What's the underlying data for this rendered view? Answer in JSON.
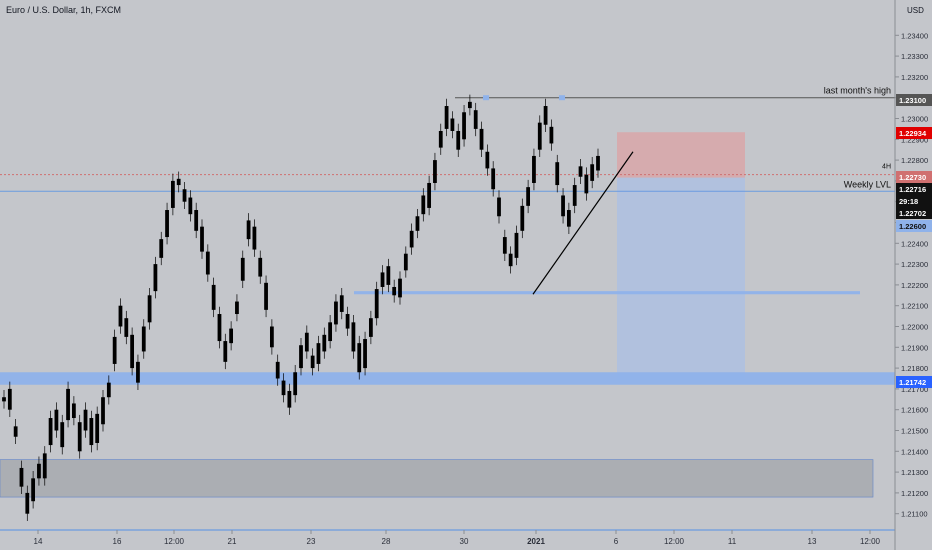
{
  "header": {
    "symbol_title": "Euro / U.S. Dollar, 1h, FXCM",
    "currency": "USD"
  },
  "colors": {
    "background": "#c4c6cb",
    "candle": "#000000",
    "blue_line": "#6a9be0",
    "blue_zone": "#8fb2ea",
    "gray_zone": "#a5a7ad",
    "resistance_line": "#555555",
    "dotted_line": "#d07070",
    "stop_zone": "#d9a6a9",
    "target_zone": "#a9bfe6",
    "badge_red": "#e00000",
    "badge_black": "#111111",
    "badge_blue": "#2962ff",
    "badge_gray": "#555555"
  },
  "chart_data": {
    "type": "candlestick",
    "title": "Euro / U.S. Dollar, 1h, FXCM",
    "ylabel": "USD",
    "ylim": [
      1.2094,
      1.2353
    ],
    "y_ticks": [
      "1.23400",
      "1.23300",
      "1.23200",
      "1.23100",
      "1.23000",
      "1.22900",
      "1.22800",
      "1.22700",
      "1.22600",
      "1.22500",
      "1.22400",
      "1.22300",
      "1.22200",
      "1.22100",
      "1.22000",
      "1.21900",
      "1.21800",
      "1.21700",
      "1.21600",
      "1.21500",
      "1.21400",
      "1.21300",
      "1.21200",
      "1.21100"
    ],
    "x_ticks": [
      "14",
      "16",
      "12:00",
      "21",
      "23",
      "28",
      "30",
      "2021",
      "6",
      "12:00",
      "11",
      "13",
      "12:00"
    ],
    "grid": false,
    "series": [
      {
        "type": "candlestick",
        "points": [
          [
            1.2164,
            1.2166
          ],
          [
            1.216,
            1.217
          ],
          [
            1.2147,
            1.2152
          ],
          [
            1.2123,
            1.2132
          ],
          [
            1.211,
            1.212
          ],
          [
            1.2116,
            1.2127
          ],
          [
            1.2127,
            1.2134
          ],
          [
            1.2127,
            1.2139
          ],
          [
            1.2143,
            1.2156
          ],
          [
            1.215,
            1.216
          ],
          [
            1.2142,
            1.2154
          ],
          [
            1.2155,
            1.217
          ],
          [
            1.2156,
            1.2163
          ],
          [
            1.214,
            1.2154
          ],
          [
            1.215,
            1.216
          ],
          [
            1.2143,
            1.2156
          ],
          [
            1.2144,
            1.2158
          ],
          [
            1.2153,
            1.2166
          ],
          [
            1.2166,
            1.2173
          ],
          [
            1.2182,
            1.2195
          ],
          [
            1.22,
            1.221
          ],
          [
            1.2195,
            1.2204
          ],
          [
            1.218,
            1.2196
          ],
          [
            1.2173,
            1.2183
          ],
          [
            1.2188,
            1.22
          ],
          [
            1.2202,
            1.2215
          ],
          [
            1.2217,
            1.223
          ],
          [
            1.2233,
            1.2242
          ],
          [
            1.2243,
            1.2256
          ],
          [
            1.2257,
            1.227
          ],
          [
            1.2268,
            1.2271
          ],
          [
            1.226,
            1.2266
          ],
          [
            1.2254,
            1.2262
          ],
          [
            1.2246,
            1.2256
          ],
          [
            1.2236,
            1.2248
          ],
          [
            1.2225,
            1.2236
          ],
          [
            1.2208,
            1.222
          ],
          [
            1.2193,
            1.2206
          ],
          [
            1.2183,
            1.2193
          ],
          [
            1.2192,
            1.2199
          ],
          [
            1.2206,
            1.2212
          ],
          [
            1.2222,
            1.2233
          ],
          [
            1.2242,
            1.2251
          ],
          [
            1.2237,
            1.2248
          ],
          [
            1.2224,
            1.2233
          ],
          [
            1.2208,
            1.2221
          ],
          [
            1.219,
            1.22
          ],
          [
            1.2175,
            1.2183
          ],
          [
            1.2167,
            1.2174
          ],
          [
            1.2161,
            1.2169
          ],
          [
            1.2167,
            1.2178
          ],
          [
            1.218,
            1.2191
          ],
          [
            1.2188,
            1.2197
          ],
          [
            1.218,
            1.2186
          ],
          [
            1.2182,
            1.2192
          ],
          [
            1.2188,
            1.2196
          ],
          [
            1.2193,
            1.2202
          ],
          [
            1.2201,
            1.2212
          ],
          [
            1.2207,
            1.2215
          ],
          [
            1.2199,
            1.2206
          ],
          [
            1.2188,
            1.2202
          ],
          [
            1.2178,
            1.2192
          ],
          [
            1.218,
            1.2194
          ],
          [
            1.2195,
            1.2204
          ],
          [
            1.2204,
            1.2218
          ],
          [
            1.2219,
            1.2226
          ],
          [
            1.222,
            1.2229
          ],
          [
            1.2215,
            1.2219
          ],
          [
            1.2214,
            1.2223
          ],
          [
            1.2227,
            1.2235
          ],
          [
            1.2238,
            1.2246
          ],
          [
            1.2246,
            1.2253
          ],
          [
            1.2254,
            1.2263
          ],
          [
            1.2257,
            1.2269
          ],
          [
            1.2269,
            1.228
          ],
          [
            1.2286,
            1.2294
          ],
          [
            1.2295,
            1.2306
          ],
          [
            1.2294,
            1.23
          ],
          [
            1.2285,
            1.2294
          ],
          [
            1.229,
            1.2303
          ],
          [
            1.2305,
            1.2308
          ],
          [
            1.2295,
            1.2304
          ],
          [
            1.2285,
            1.2295
          ],
          [
            1.2276,
            1.2284
          ],
          [
            1.2266,
            1.2276
          ],
          [
            1.2253,
            1.2262
          ],
          [
            1.2235,
            1.2243
          ],
          [
            1.2229,
            1.2235
          ],
          [
            1.2233,
            1.2245
          ],
          [
            1.2246,
            1.2258
          ],
          [
            1.2258,
            1.2267
          ],
          [
            1.2269,
            1.2282
          ],
          [
            1.2285,
            1.2298
          ],
          [
            1.2297,
            1.2306
          ],
          [
            1.2288,
            1.2296
          ],
          [
            1.2268,
            1.2279
          ],
          [
            1.2253,
            1.2263
          ],
          [
            1.2248,
            1.2256
          ],
          [
            1.2258,
            1.2268
          ],
          [
            1.2272,
            1.2277
          ],
          [
            1.2264,
            1.2273
          ],
          [
            1.227,
            1.2278
          ],
          [
            1.2275,
            1.2282
          ]
        ]
      }
    ],
    "levels": [
      {
        "label": "last month's high",
        "value": 1.231
      },
      {
        "label": "4H",
        "value": 1.2273
      },
      {
        "label": "Weekly LVL",
        "value": 1.2265
      }
    ],
    "zones": [
      {
        "price_low": 1.2172,
        "price_high": 1.2178
      },
      {
        "price_low": 1.22155,
        "price_high": 1.2217
      },
      {
        "price_low": 1.2118,
        "price_high": 1.2136
      },
      {
        "price_low": 1.22716,
        "price_high": 1.22934
      },
      {
        "price_low": 1.21742,
        "price_high": 1.22716
      }
    ],
    "price_badges": [
      "1.23100",
      "1.22934",
      "1.22730",
      "1.22716",
      "29:18",
      "1.22702",
      "1.22600",
      "1.21742"
    ]
  }
}
